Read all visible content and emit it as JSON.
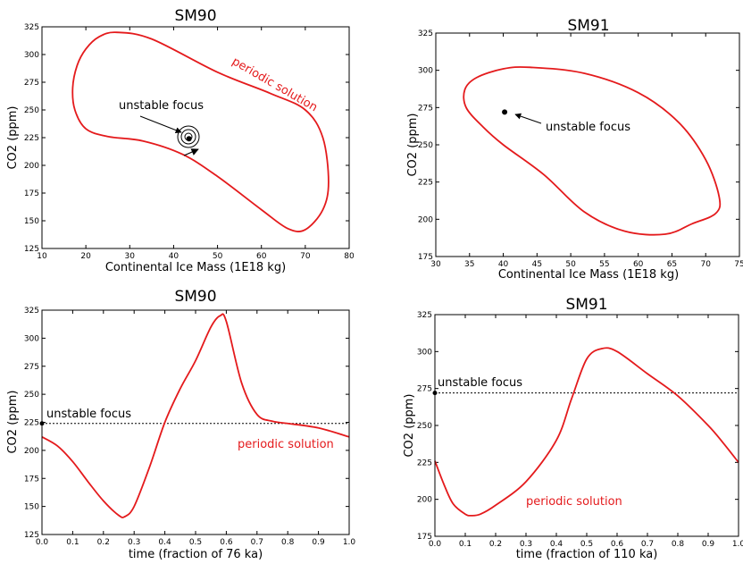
{
  "chart_data": [
    {
      "type": "line",
      "title": "SM90",
      "xlabel": "Continental Ice Mass (1E18 kg)",
      "ylabel": "CO2 (ppm)",
      "xlim": [
        10,
        80
      ],
      "ylim": [
        125,
        325
      ],
      "xticks": [
        10,
        20,
        30,
        40,
        50,
        60,
        70,
        80
      ],
      "yticks": [
        125,
        150,
        175,
        200,
        225,
        250,
        275,
        300,
        325
      ],
      "series": [
        {
          "name": "periodic solution",
          "color": "#e41a1c",
          "closed": true,
          "x": [
            27,
            35,
            50,
            62,
            70,
            74,
            75.3,
            74,
            70,
            66,
            60,
            50,
            42,
            33,
            25,
            20,
            17.5,
            17,
            18,
            20,
            23,
            27
          ],
          "y": [
            320,
            314,
            284,
            265,
            250,
            225,
            185,
            160,
            142,
            143,
            160,
            190,
            210,
            222,
            226,
            233,
            250,
            270,
            290,
            305,
            316,
            320
          ]
        }
      ],
      "fixed_point": {
        "x": 43.5,
        "y": 224
      },
      "annotations": [
        {
          "text": "unstable focus",
          "color": "#000000"
        },
        {
          "text": "periodic solution",
          "color": "#e41a1c"
        }
      ]
    },
    {
      "type": "line",
      "title": "SM91",
      "xlabel": "Continental Ice Mass (1E18 kg)",
      "ylabel": "CO2 (ppm)",
      "xlim": [
        30,
        75
      ],
      "ylim": [
        175,
        325
      ],
      "xticks": [
        30,
        35,
        40,
        45,
        50,
        55,
        60,
        65,
        70,
        75
      ],
      "yticks": [
        175,
        200,
        225,
        250,
        275,
        300,
        325
      ],
      "series": [
        {
          "name": "periodic solution",
          "color": "#e41a1c",
          "closed": true,
          "x": [
            44,
            52,
            60,
            66,
            70,
            72,
            71.5,
            68,
            64,
            58,
            52,
            46,
            40,
            37,
            34.5,
            34.3,
            36,
            40,
            44
          ],
          "y": [
            302,
            298,
            285,
            265,
            240,
            215,
            204,
            197,
            190,
            192,
            205,
            230,
            250,
            262,
            275,
            287,
            295,
            301,
            302
          ]
        }
      ],
      "fixed_point": {
        "x": 40.2,
        "y": 272
      },
      "annotations": [
        {
          "text": "unstable focus",
          "color": "#000000"
        }
      ]
    },
    {
      "type": "line",
      "title": "SM90",
      "xlabel": "time (fraction of 76 ka)",
      "ylabel": "CO2 (ppm)",
      "xlim": [
        0.0,
        1.0
      ],
      "ylim": [
        125,
        325
      ],
      "xticks": [
        "0.0",
        "0.1",
        "0.2",
        "0.3",
        "0.4",
        "0.5",
        "0.6",
        "0.7",
        "0.8",
        "0.9",
        "1.0"
      ],
      "yticks": [
        125,
        150,
        175,
        200,
        225,
        250,
        275,
        300,
        325
      ],
      "series": [
        {
          "name": "periodic solution",
          "color": "#e41a1c",
          "x": [
            0.0,
            0.05,
            0.1,
            0.15,
            0.2,
            0.25,
            0.27,
            0.3,
            0.35,
            0.4,
            0.45,
            0.5,
            0.55,
            0.58,
            0.6,
            0.65,
            0.7,
            0.75,
            0.8,
            0.9,
            1.0
          ],
          "y": [
            212,
            204,
            190,
            172,
            155,
            142,
            141,
            150,
            185,
            225,
            255,
            280,
            310,
            320,
            315,
            260,
            232,
            226,
            224,
            220,
            212
          ]
        },
        {
          "name": "unstable focus",
          "color": "#000000",
          "dashed": true,
          "x": [
            0.0,
            1.0
          ],
          "y": [
            224,
            224
          ]
        }
      ],
      "annotations": [
        {
          "text": "unstable focus",
          "color": "#000000"
        },
        {
          "text": "periodic solution",
          "color": "#e41a1c"
        }
      ]
    },
    {
      "type": "line",
      "title": "SM91",
      "xlabel": "time (fraction of 110 ka)",
      "ylabel": "CO2 (ppm)",
      "xlim": [
        0.0,
        1.0
      ],
      "ylim": [
        175,
        325
      ],
      "xticks": [
        "0.0",
        "0.1",
        "0.2",
        "0.3",
        "0.4",
        "0.5",
        "0.6",
        "0.7",
        "0.8",
        "0.9",
        "1.0"
      ],
      "yticks": [
        175,
        200,
        225,
        250,
        275,
        300,
        325
      ],
      "series": [
        {
          "name": "periodic solution",
          "color": "#e41a1c",
          "x": [
            0.0,
            0.03,
            0.06,
            0.1,
            0.12,
            0.15,
            0.2,
            0.3,
            0.4,
            0.45,
            0.5,
            0.55,
            0.6,
            0.7,
            0.8,
            0.9,
            0.95,
            1.0
          ],
          "y": [
            226,
            210,
            197,
            190,
            189,
            190,
            196,
            212,
            240,
            268,
            295,
            302,
            300,
            285,
            270,
            250,
            238,
            225
          ]
        },
        {
          "name": "unstable focus",
          "color": "#000000",
          "dashed": true,
          "x": [
            0.0,
            1.0
          ],
          "y": [
            272,
            272
          ]
        }
      ],
      "annotations": [
        {
          "text": "unstable focus",
          "color": "#000000"
        },
        {
          "text": "periodic solution",
          "color": "#e41a1c"
        }
      ]
    }
  ]
}
